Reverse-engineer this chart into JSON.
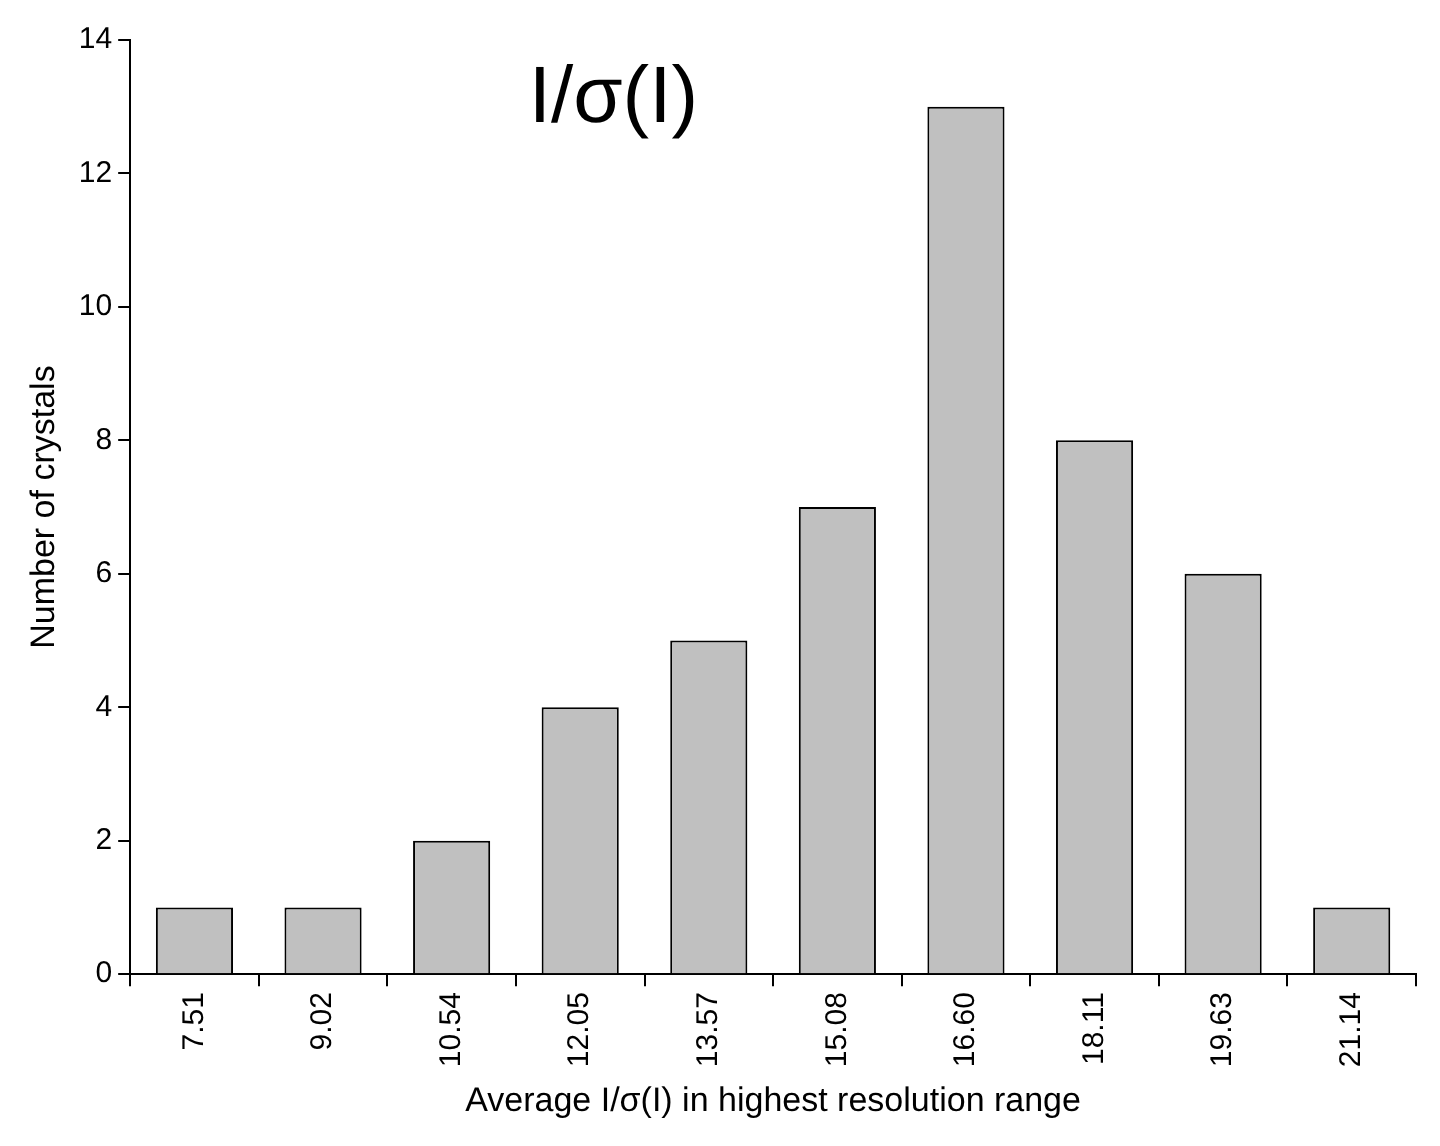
{
  "chart_data": {
    "type": "bar",
    "categories": [
      "7.51",
      "9.02",
      "10.54",
      "12.05",
      "13.57",
      "15.08",
      "16.60",
      "18.11",
      "19.63",
      "21.14"
    ],
    "values": [
      1,
      1,
      2,
      4,
      5,
      7,
      13,
      8,
      6,
      1
    ],
    "color": "#c0c0c0",
    "ylim": [
      0,
      14
    ],
    "yticks": [
      0,
      2,
      4,
      6,
      8,
      10,
      12,
      14
    ],
    "xlabel": "Average I/σ(I) in highest resolution range",
    "ylabel": "Number of crystals",
    "annotations": [
      "I/σ(I)"
    ]
  }
}
